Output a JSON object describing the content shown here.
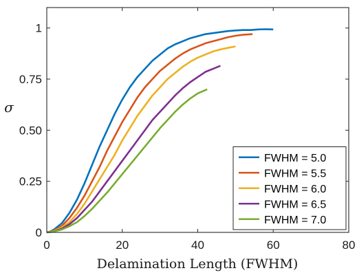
{
  "chart_data": {
    "type": "line",
    "title": "",
    "xlabel": "Delamination Length (FWHM)",
    "ylabel": "σ",
    "xlim": [
      0,
      80
    ],
    "ylim": [
      0,
      1.1
    ],
    "xticks": [
      0,
      20,
      40,
      60,
      80
    ],
    "xtick_labels": [
      "0",
      "20",
      "40",
      "60",
      "80"
    ],
    "yticks": [
      0,
      0.25,
      0.5,
      0.75,
      1
    ],
    "ytick_labels": [
      "0",
      "0.25",
      "0.50",
      "0.75",
      "1"
    ],
    "grid": false,
    "legend_position": "bottom-right",
    "series": [
      {
        "name": "FWHM = 5.0",
        "color": "#0072BD",
        "x": [
          0,
          1,
          2,
          4,
          6,
          8,
          10,
          12,
          14,
          16,
          18,
          20,
          22,
          24,
          26,
          28,
          30,
          32,
          34,
          36,
          38,
          40,
          42,
          44,
          46,
          48,
          50,
          52,
          54,
          56,
          58,
          60
        ],
        "y": [
          0,
          0.005,
          0.015,
          0.045,
          0.095,
          0.16,
          0.24,
          0.33,
          0.42,
          0.5,
          0.58,
          0.65,
          0.71,
          0.76,
          0.8,
          0.84,
          0.87,
          0.9,
          0.92,
          0.935,
          0.95,
          0.96,
          0.97,
          0.975,
          0.98,
          0.985,
          0.988,
          0.99,
          0.99,
          0.993,
          0.994,
          0.993
        ]
      },
      {
        "name": "FWHM = 5.5",
        "color": "#D95319",
        "x": [
          0,
          1,
          2,
          4,
          6,
          8,
          10,
          12,
          14,
          16,
          18,
          20,
          22,
          24,
          26,
          28,
          30,
          32,
          34,
          36,
          38,
          40,
          42,
          44,
          46,
          48,
          50,
          52,
          54.5
        ],
        "y": [
          0,
          0.004,
          0.01,
          0.032,
          0.07,
          0.12,
          0.18,
          0.25,
          0.32,
          0.4,
          0.47,
          0.54,
          0.6,
          0.66,
          0.71,
          0.75,
          0.79,
          0.82,
          0.85,
          0.875,
          0.895,
          0.91,
          0.925,
          0.935,
          0.945,
          0.955,
          0.962,
          0.967,
          0.97
        ]
      },
      {
        "name": "FWHM = 6.0",
        "color": "#EDB120",
        "x": [
          0,
          1,
          2,
          4,
          6,
          8,
          10,
          12,
          14,
          16,
          18,
          20,
          22,
          24,
          26,
          28,
          30,
          32,
          34,
          36,
          38,
          40,
          42,
          44,
          46,
          48,
          50
        ],
        "y": [
          0,
          0.003,
          0.008,
          0.025,
          0.05,
          0.09,
          0.14,
          0.2,
          0.26,
          0.32,
          0.38,
          0.45,
          0.51,
          0.57,
          0.62,
          0.67,
          0.71,
          0.75,
          0.78,
          0.81,
          0.835,
          0.855,
          0.87,
          0.885,
          0.895,
          0.903,
          0.91
        ]
      },
      {
        "name": "FWHM = 6.5",
        "color": "#7E2F8E",
        "x": [
          0,
          1,
          2,
          4,
          6,
          8,
          10,
          12,
          14,
          16,
          18,
          20,
          22,
          24,
          26,
          28,
          30,
          32,
          34,
          36,
          38,
          40,
          42,
          44,
          46
        ],
        "y": [
          0,
          0.002,
          0.006,
          0.018,
          0.04,
          0.07,
          0.11,
          0.15,
          0.2,
          0.25,
          0.3,
          0.35,
          0.4,
          0.45,
          0.5,
          0.55,
          0.59,
          0.63,
          0.67,
          0.705,
          0.735,
          0.76,
          0.785,
          0.8,
          0.815
        ]
      },
      {
        "name": "FWHM = 7.0",
        "color": "#77AC30",
        "x": [
          0,
          1,
          2,
          4,
          6,
          8,
          10,
          12,
          14,
          16,
          18,
          20,
          22,
          24,
          26,
          28,
          30,
          32,
          34,
          36,
          38,
          40,
          42.5
        ],
        "y": [
          0,
          0.002,
          0.005,
          0.014,
          0.03,
          0.05,
          0.08,
          0.115,
          0.155,
          0.195,
          0.24,
          0.285,
          0.33,
          0.375,
          0.42,
          0.465,
          0.51,
          0.55,
          0.59,
          0.625,
          0.655,
          0.68,
          0.7
        ]
      }
    ]
  }
}
